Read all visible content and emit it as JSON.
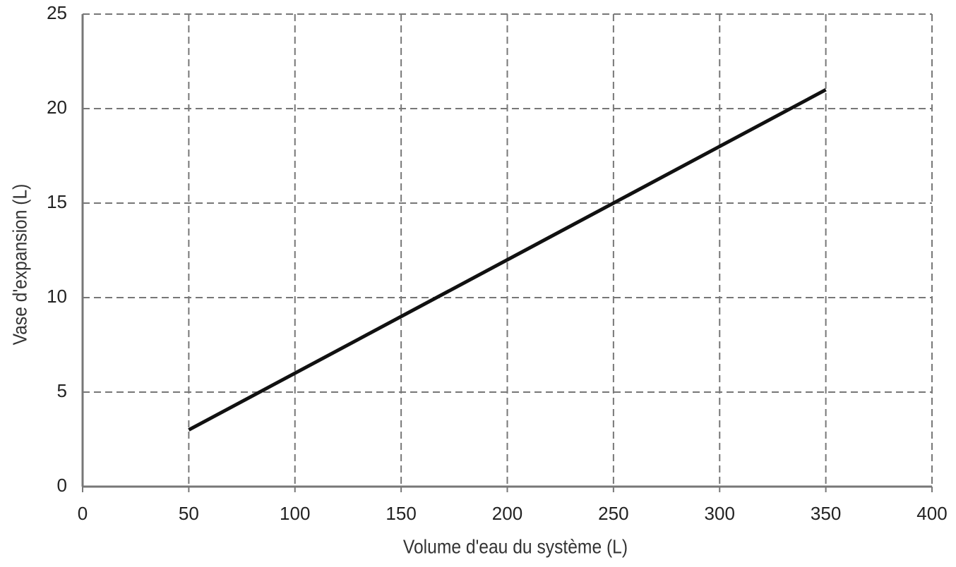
{
  "chart_data": {
    "type": "line",
    "x_label": "Volume d'eau du système (L)",
    "y_label": "Vase d'expansion (L)",
    "x": [
      50,
      350
    ],
    "series": [
      {
        "name": "Vase d'expansion",
        "color": "#111111",
        "values": [
          3,
          21
        ]
      }
    ],
    "xlim": [
      0,
      400
    ],
    "xticks": [
      0,
      50,
      100,
      150,
      200,
      250,
      300,
      350,
      400
    ],
    "ylim": [
      0,
      25
    ],
    "yticks": [
      0,
      5,
      10,
      15,
      20,
      25
    ],
    "grid": true
  }
}
